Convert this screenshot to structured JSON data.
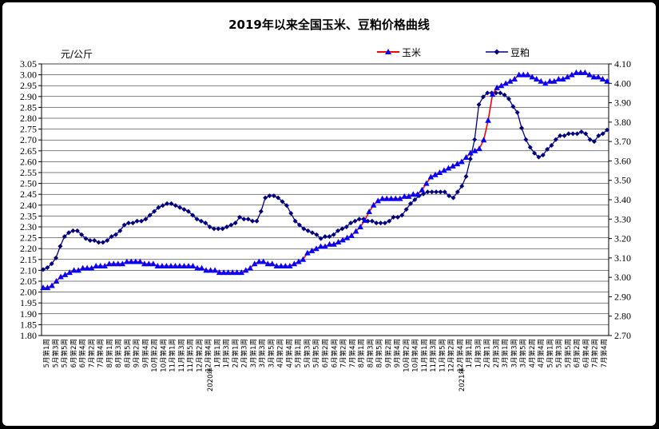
{
  "chart_data": {
    "type": "line",
    "title": "2019年以来全国玉米、豆粕价格曲线",
    "ylabel": "元/公斤",
    "ylim_left": [
      1.8,
      3.05
    ],
    "ylim_right": [
      2.7,
      4.1
    ],
    "yticks_left": [
      "1.80",
      "1.85",
      "1.90",
      "1.95",
      "2.00",
      "2.05",
      "2.10",
      "2.15",
      "2.20",
      "2.25",
      "2.30",
      "2.35",
      "2.40",
      "2.45",
      "2.50",
      "2.55",
      "2.60",
      "2.65",
      "2.70",
      "2.75",
      "2.80",
      "2.85",
      "2.90",
      "2.95",
      "3.00",
      "3.05"
    ],
    "yticks_right": [
      "2.70",
      "2.80",
      "2.90",
      "3.00",
      "3.10",
      "3.20",
      "3.30",
      "3.40",
      "3.50",
      "3.60",
      "3.70",
      "3.80",
      "3.90",
      "4.00",
      "4.10"
    ],
    "grid": true,
    "legend_position": "top",
    "x_labels": [
      "5月第1周",
      "5月第3周",
      "5月第5周",
      "6月第2周",
      "6月第4周",
      "7月第2周",
      "7月第4周",
      "8月第1周",
      "8月第3周",
      "8月第5周",
      "9月第2周",
      "9月第4周",
      "10月第2周",
      "10月第4周",
      "11月第1周",
      "11月第3周",
      "11月第5周",
      "12月第2周",
      "12月第4周",
      "1月第1周",
      "1月第3周",
      "2月第1周",
      "2月第3周",
      "3月第1周",
      "3月第3周",
      "3月第5周",
      "4月第2周",
      "4月第4周",
      "5月第1周",
      "5月第3周",
      "5月第5周",
      "6月第2周",
      "6月第4周",
      "7月第2周",
      "7月第4周",
      "8月第1周",
      "8月第3周",
      "8月第5周",
      "9月第2周",
      "9月第4周",
      "10月第2周",
      "10月第4周",
      "11月第1周",
      "11月第3周",
      "11月第5周",
      "12月第2周",
      "12月第4周",
      "1月第1周",
      "1月第3周",
      "2月第1周",
      "2月第3周",
      "3月第1周",
      "3月第3周",
      "3月第5周",
      "4月第2周",
      "4月第4周",
      "5月第1周",
      "5月第3周",
      "5月第5周",
      "6月第2周",
      "6月第4周",
      "7月第2周",
      "7月第4周"
    ],
    "year_labels": [
      {
        "index": 19,
        "text": "2020年"
      },
      {
        "index": 47,
        "text": "2021年"
      }
    ],
    "series": [
      {
        "name": "玉米",
        "axis": "left",
        "color": "#0000FF",
        "line_color": "#FF0000",
        "marker": "triangle",
        "values": [
          2.02,
          2.02,
          2.03,
          2.05,
          2.07,
          2.08,
          2.09,
          2.1,
          2.1,
          2.11,
          2.11,
          2.11,
          2.12,
          2.12,
          2.12,
          2.13,
          2.13,
          2.13,
          2.13,
          2.14,
          2.14,
          2.14,
          2.14,
          2.13,
          2.13,
          2.13,
          2.12,
          2.12,
          2.12,
          2.12,
          2.12,
          2.12,
          2.12,
          2.12,
          2.12,
          2.11,
          2.11,
          2.1,
          2.1,
          2.1,
          2.09,
          2.09,
          2.09,
          2.09,
          2.09,
          2.09,
          2.1,
          2.11,
          2.13,
          2.14,
          2.14,
          2.13,
          2.13,
          2.12,
          2.12,
          2.12,
          2.12,
          2.13,
          2.14,
          2.15,
          2.18,
          2.19,
          2.2,
          2.21,
          2.21,
          2.22,
          2.22,
          2.23,
          2.24,
          2.25,
          2.26,
          2.28,
          2.3,
          2.33,
          2.37,
          2.4,
          2.42,
          2.43,
          2.43,
          2.43,
          2.43,
          2.43,
          2.44,
          2.44,
          2.45,
          2.45,
          2.47,
          2.5,
          2.53,
          2.54,
          2.55,
          2.56,
          2.57,
          2.58,
          2.59,
          2.6,
          2.62,
          2.64,
          2.65,
          2.66,
          2.7,
          2.79,
          2.91,
          2.94,
          2.95,
          2.96,
          2.97,
          2.98,
          3.0,
          3.0,
          3.0,
          2.99,
          2.98,
          2.97,
          2.96,
          2.97,
          2.97,
          2.98,
          2.98,
          2.99,
          3.0,
          3.01,
          3.01,
          3.01,
          3.0,
          2.99,
          2.99,
          2.98,
          2.97
        ]
      },
      {
        "name": "豆粕",
        "axis": "right",
        "color": "#000080",
        "marker": "diamond",
        "values": [
          3.04,
          3.05,
          3.07,
          3.1,
          3.16,
          3.21,
          3.23,
          3.24,
          3.24,
          3.22,
          3.2,
          3.19,
          3.19,
          3.18,
          3.18,
          3.19,
          3.21,
          3.22,
          3.24,
          3.27,
          3.28,
          3.28,
          3.29,
          3.29,
          3.3,
          3.32,
          3.34,
          3.36,
          3.37,
          3.38,
          3.38,
          3.37,
          3.36,
          3.35,
          3.34,
          3.32,
          3.3,
          3.29,
          3.28,
          3.26,
          3.25,
          3.25,
          3.25,
          3.26,
          3.27,
          3.28,
          3.31,
          3.3,
          3.3,
          3.29,
          3.29,
          3.34,
          3.41,
          3.42,
          3.42,
          3.41,
          3.39,
          3.37,
          3.33,
          3.29,
          3.27,
          3.25,
          3.24,
          3.23,
          3.22,
          3.2,
          3.21,
          3.21,
          3.22,
          3.24,
          3.25,
          3.26,
          3.28,
          3.29,
          3.3,
          3.3,
          3.29,
          3.29,
          3.28,
          3.28,
          3.28,
          3.29,
          3.31,
          3.31,
          3.32,
          3.35,
          3.38,
          3.4,
          3.42,
          3.43,
          3.44,
          3.44,
          3.44,
          3.44,
          3.44,
          3.42,
          3.41,
          3.44,
          3.47,
          3.52,
          3.61,
          3.71,
          3.89,
          3.93,
          3.95,
          3.95,
          3.95,
          3.95,
          3.94,
          3.92,
          3.88,
          3.85,
          3.77,
          3.71,
          3.67,
          3.64,
          3.62,
          3.63,
          3.66,
          3.68,
          3.71,
          3.73,
          3.73,
          3.74,
          3.74,
          3.74,
          3.75,
          3.74,
          3.71,
          3.7,
          3.73,
          3.74,
          3.76
        ]
      }
    ]
  }
}
